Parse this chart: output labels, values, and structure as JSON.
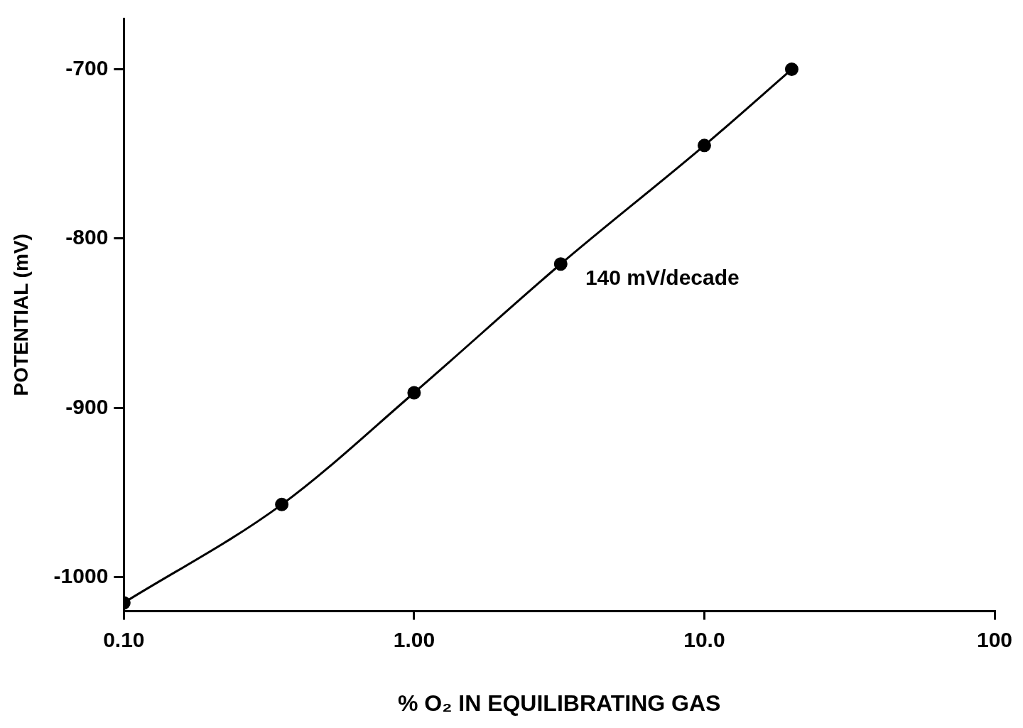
{
  "chart_data": {
    "type": "line",
    "xlabel": "% O₂ IN EQUILIBRATING GAS",
    "ylabel": "POTENTIAL (mV)",
    "log": "x",
    "x": [
      0.1,
      0.35,
      1.0,
      3.2,
      10,
      20
    ],
    "series": [
      {
        "color": "#000000",
        "values": [
          -1015,
          -957,
          -891,
          -815,
          -745,
          -700
        ]
      }
    ],
    "xlim": [
      0.1,
      100
    ],
    "xticks": [
      {
        "value": 0.1,
        "label": "0.10"
      },
      {
        "value": 1,
        "label": "1.00"
      },
      {
        "value": 10,
        "label": "10.0"
      },
      {
        "value": 100,
        "label": "100"
      }
    ],
    "ylim": [
      -1020,
      -670
    ],
    "yticks": [
      -1000,
      -900,
      -800,
      -700
    ],
    "annotations": [
      "140 mV/decade"
    ],
    "grid": false,
    "legend": false,
    "marker": "circle",
    "line_style": "solid"
  }
}
